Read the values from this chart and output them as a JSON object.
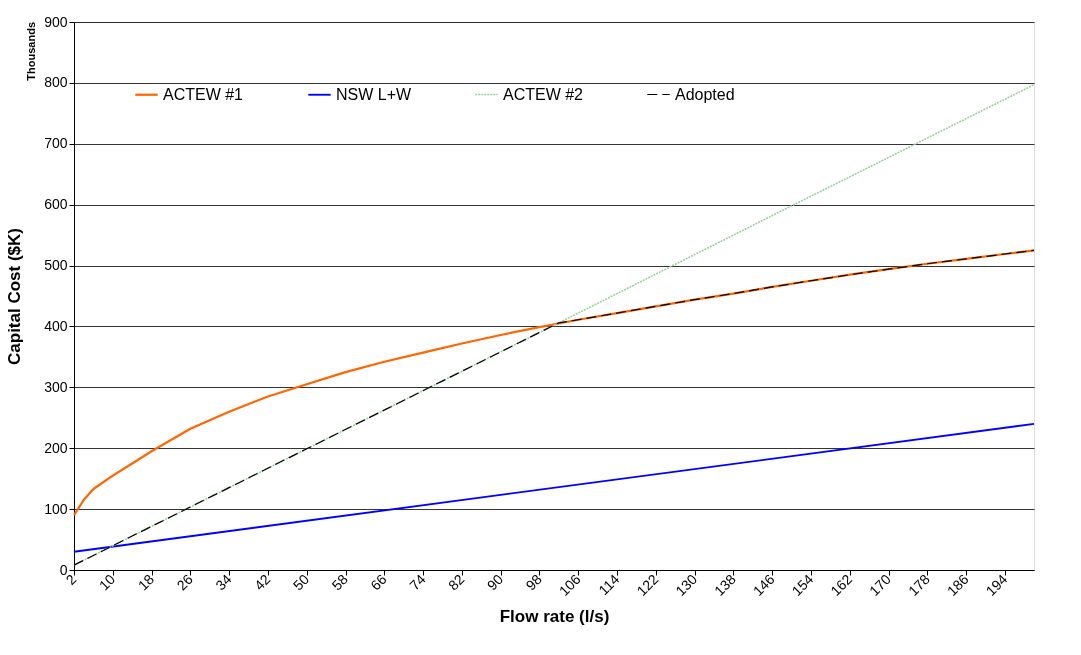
{
  "chart_data": {
    "type": "line",
    "xlabel": "Flow rate (l/s)",
    "ylabel": "Capital Cost ($K)",
    "annotations": [
      "Thousands"
    ],
    "xlim": [
      2,
      200
    ],
    "xticks": [
      2,
      10,
      18,
      26,
      34,
      42,
      50,
      58,
      66,
      74,
      82,
      90,
      98,
      106,
      114,
      122,
      130,
      138,
      146,
      154,
      162,
      170,
      178,
      186,
      194
    ],
    "ylim": [
      0,
      900
    ],
    "yticks": [
      0,
      100,
      200,
      300,
      400,
      500,
      600,
      700,
      800,
      900
    ],
    "grid": "y",
    "legend": "top left",
    "marker": "none",
    "series": [
      {
        "name": "ACTEW #1",
        "color": "#ff6600",
        "line_style": "solid",
        "x": [
          2,
          4,
          6,
          10,
          14,
          18,
          26,
          34,
          42,
          50,
          58,
          66,
          74,
          82,
          90,
          98,
          106,
          114,
          122,
          130,
          138,
          146,
          154,
          162,
          170,
          178,
          186,
          194,
          200
        ],
        "values": [
          90,
          115,
          133,
          155,
          175,
          195,
          232,
          260,
          285,
          305,
          325,
          342,
          357,
          372,
          386,
          399,
          411,
          422,
          433,
          444,
          454,
          465,
          475,
          485,
          494,
          503,
          511,
          519,
          525
        ]
      },
      {
        "name": "NSW L+W",
        "color": "#0000ff",
        "line_style": "solid",
        "x": [
          2,
          200
        ],
        "values": [
          30,
          240
        ]
      },
      {
        "name": "ACTEW #2",
        "color": "#99cc99",
        "line_style": "dotted",
        "x": [
          2,
          50,
          102,
          150,
          200
        ],
        "values": [
          8,
          199,
          406,
          598,
          797
        ]
      },
      {
        "name": "Adopted",
        "color": "#000000",
        "line_style": "dashed",
        "x": [
          2,
          50,
          102,
          106,
          114,
          122,
          130,
          138,
          146,
          154,
          162,
          170,
          178,
          186,
          194,
          200
        ],
        "values": [
          8,
          199,
          406,
          411,
          422,
          433,
          444,
          454,
          465,
          475,
          485,
          494,
          503,
          511,
          519,
          525
        ]
      }
    ]
  }
}
